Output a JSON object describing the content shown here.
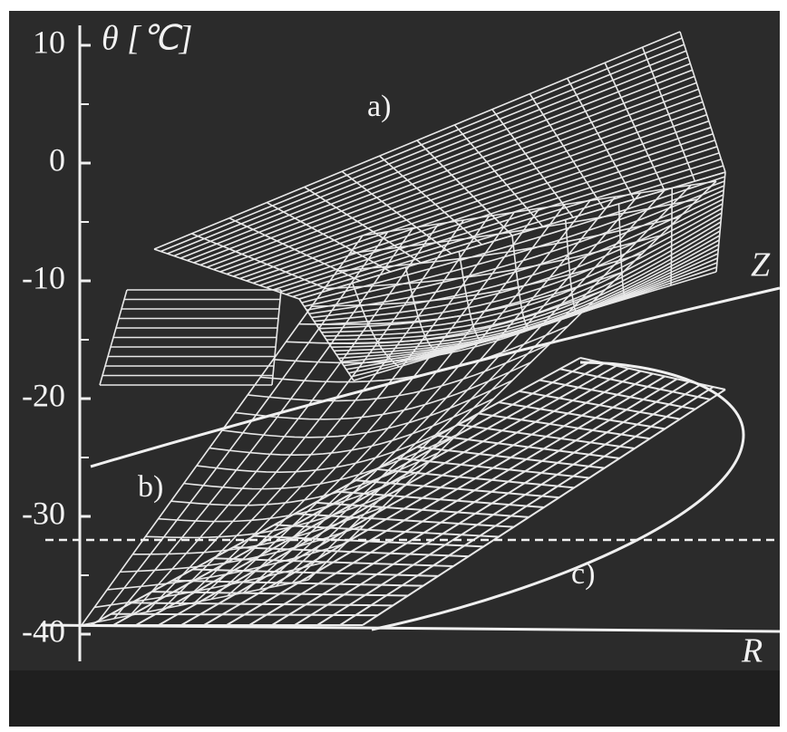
{
  "chart_data": {
    "type": "wireframe3d",
    "ylabel": "θ  [℃]",
    "xlabel": "R",
    "zlabel": "Z",
    "annotations": [
      "a)",
      "b)",
      "c)"
    ],
    "ylim": [
      -40,
      11
    ],
    "yticks": [
      10,
      0,
      -10,
      -20,
      -30,
      -40
    ],
    "hline": -32,
    "color": "#e8e8e8"
  }
}
